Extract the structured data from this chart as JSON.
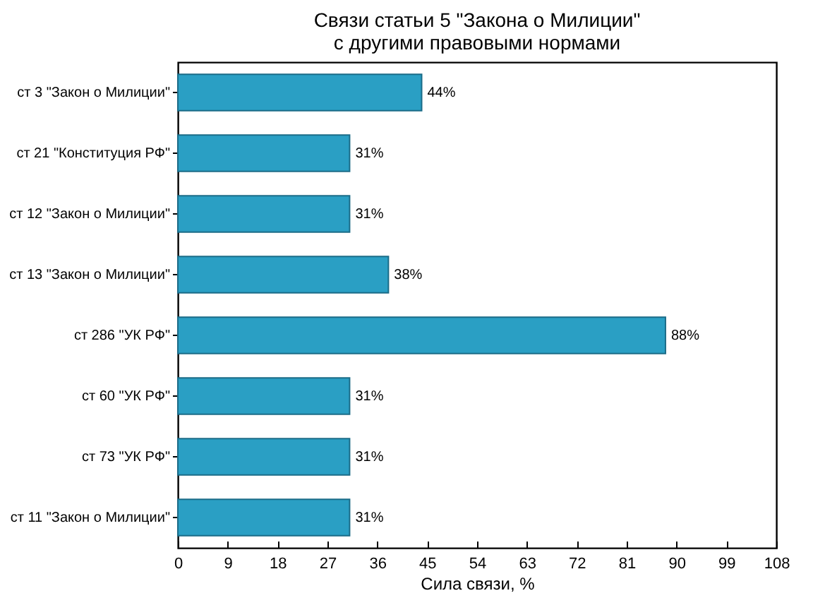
{
  "chart_data": {
    "type": "bar",
    "orientation": "horizontal",
    "title": "Связи статьи 5 \"Закона о Милиции\"\nс другими правовыми нормами",
    "xlabel": "Сила связи, %",
    "categories": [
      "ст 3 \"Закон о Милиции\"",
      "ст 21 \"Конституция РФ\"",
      "ст 12 \"Закон о Милиции\"",
      "ст 13 \"Закон о Милиции\"",
      "ст 286 \"УК РФ\"",
      "ст 60 \"УК РФ\"",
      "ст 73 \"УК РФ\"",
      "ст 11 \"Закон о Милиции\""
    ],
    "values": [
      44,
      31,
      31,
      38,
      88,
      31,
      31,
      31
    ],
    "value_labels": [
      "44%",
      "31%",
      "31%",
      "38%",
      "88%",
      "31%",
      "31%",
      "31%"
    ],
    "color": "#2a9fc4",
    "xlim": [
      0,
      108
    ],
    "xticks": [
      0,
      9,
      18,
      27,
      36,
      45,
      54,
      63,
      72,
      81,
      90,
      99,
      108
    ],
    "grid": false
  }
}
